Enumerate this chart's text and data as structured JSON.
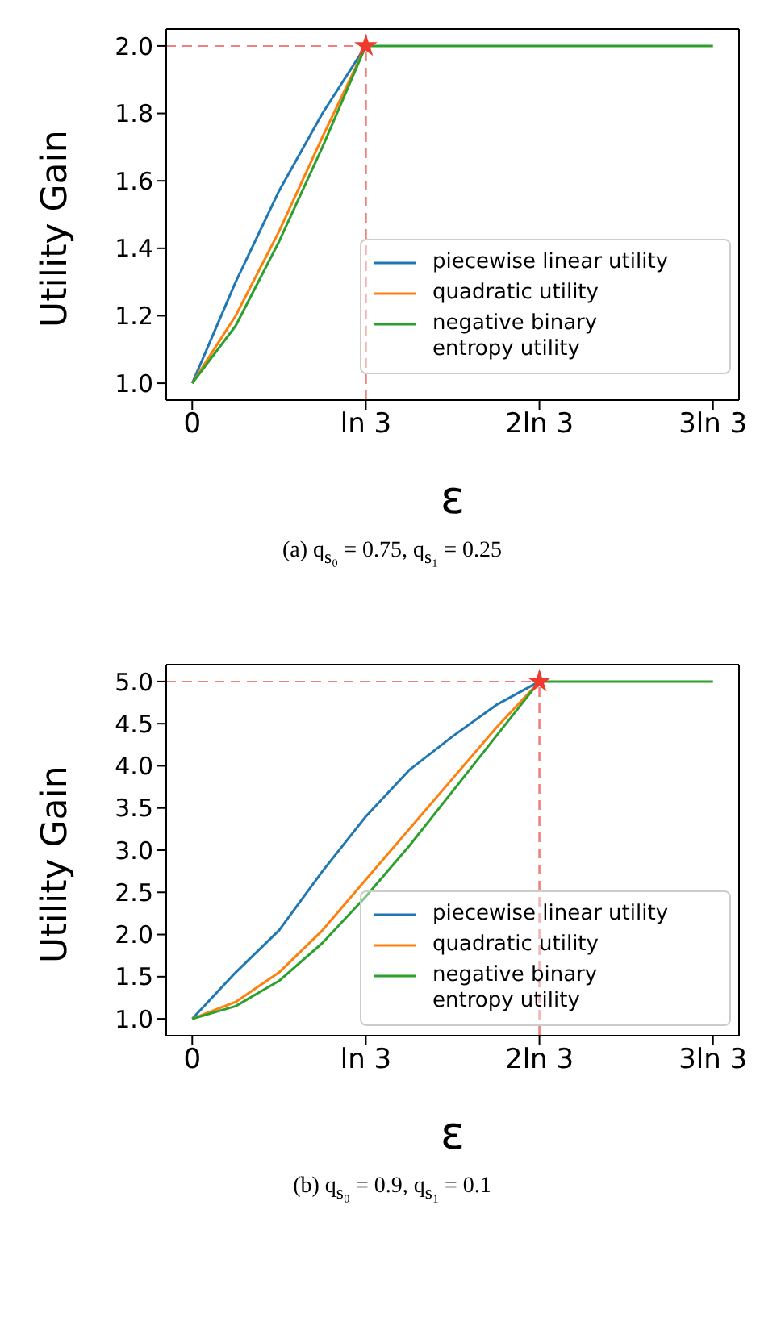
{
  "chart_data": [
    {
      "type": "line",
      "xlabel": "ε",
      "ylabel": "Utility Gain",
      "annotations": [
        "(a) q$_{s₀}$ = 0.75, q$_{s₁}$ = 0.25"
      ],
      "legend": "right",
      "grid": false,
      "marker": "none",
      "categories": [
        "0",
        null,
        null,
        null,
        "ln 3",
        null,
        null,
        null,
        "2ln 3",
        null,
        null,
        null,
        "3ln 3"
      ],
      "ylim": [
        0.95,
        2.05
      ],
      "yticks": [
        {
          "value": 1,
          "label": "1.0"
        },
        1.2,
        1.4,
        1.6,
        1.8,
        {
          "value": 2,
          "label": "2.0"
        }
      ],
      "series": [
        {
          "name": "piecewise linear utility",
          "color": "#1f77b4",
          "values": [
            1,
            1.3,
            1.57,
            1.8,
            2,
            null,
            null,
            null,
            null,
            null,
            null,
            null,
            null
          ]
        },
        {
          "name": "quadratic utility",
          "color": "#ff7f0e",
          "values": [
            1,
            1.2,
            1.45,
            1.73,
            2,
            null,
            null,
            null,
            null,
            null,
            null,
            null,
            null
          ]
        },
        {
          "name": "negative binary entropy utility",
          "color": "#2ca02c",
          "values": [
            1,
            1.17,
            1.42,
            1.7,
            2,
            2,
            2,
            2,
            2,
            2,
            2,
            2,
            2
          ]
        },
        {
          "type": "scatter",
          "marker": "star",
          "color": "#f03a2e",
          "x": [
            "ln 3"
          ],
          "values": [
            2
          ]
        }
      ],
      "ref_lines": [
        {
          "axis": "y",
          "value": 2,
          "color": "#f08080",
          "line_style": "dashed"
        },
        {
          "axis": "x",
          "value": "ln 3",
          "color": "#f08080",
          "line_style": "dashed"
        }
      ]
    },
    {
      "type": "line",
      "xlabel": "ε",
      "ylabel": "Utility Gain",
      "annotations": [
        "(b) q$_{s₀}$ = 0.9, q$_{s₁}$ = 0.1"
      ],
      "legend": "bottom right",
      "grid": false,
      "marker": "none",
      "categories": [
        "0",
        null,
        null,
        null,
        "ln 3",
        null,
        null,
        null,
        "2ln 3",
        null,
        null,
        null,
        "3ln 3"
      ],
      "ylim": [
        0.8,
        5.2
      ],
      "yticks": [
        {
          "value": 1,
          "label": "1.0"
        },
        1.5,
        {
          "value": 2,
          "label": "2.0"
        },
        2.5,
        {
          "value": 3,
          "label": "3.0"
        },
        3.5,
        {
          "value": 4,
          "label": "4.0"
        },
        4.5,
        {
          "value": 5,
          "label": "5.0"
        }
      ],
      "series": [
        {
          "name": "piecewise linear utility",
          "color": "#1f77b4",
          "values": [
            1,
            1.55,
            2.05,
            2.75,
            3.4,
            3.95,
            4.35,
            4.72,
            5,
            null,
            null,
            null,
            null
          ]
        },
        {
          "name": "quadratic utility",
          "color": "#ff7f0e",
          "values": [
            1,
            1.2,
            1.55,
            2.05,
            2.65,
            3.25,
            3.85,
            4.45,
            5,
            null,
            null,
            null,
            null
          ]
        },
        {
          "name": "negative binary entropy utility",
          "color": "#2ca02c",
          "values": [
            1,
            1.15,
            1.45,
            1.9,
            2.45,
            3.05,
            3.7,
            4.35,
            5,
            5,
            5,
            5,
            5
          ]
        },
        {
          "type": "scatter",
          "marker": "star",
          "color": "#f03a2e",
          "x": [
            "2ln 3"
          ],
          "values": [
            5
          ]
        }
      ],
      "ref_lines": [
        {
          "axis": "y",
          "value": 5,
          "color": "#f08080",
          "line_style": "dashed"
        },
        {
          "axis": "x",
          "value": "2ln 3",
          "color": "#f08080",
          "line_style": "dashed"
        }
      ]
    }
  ]
}
